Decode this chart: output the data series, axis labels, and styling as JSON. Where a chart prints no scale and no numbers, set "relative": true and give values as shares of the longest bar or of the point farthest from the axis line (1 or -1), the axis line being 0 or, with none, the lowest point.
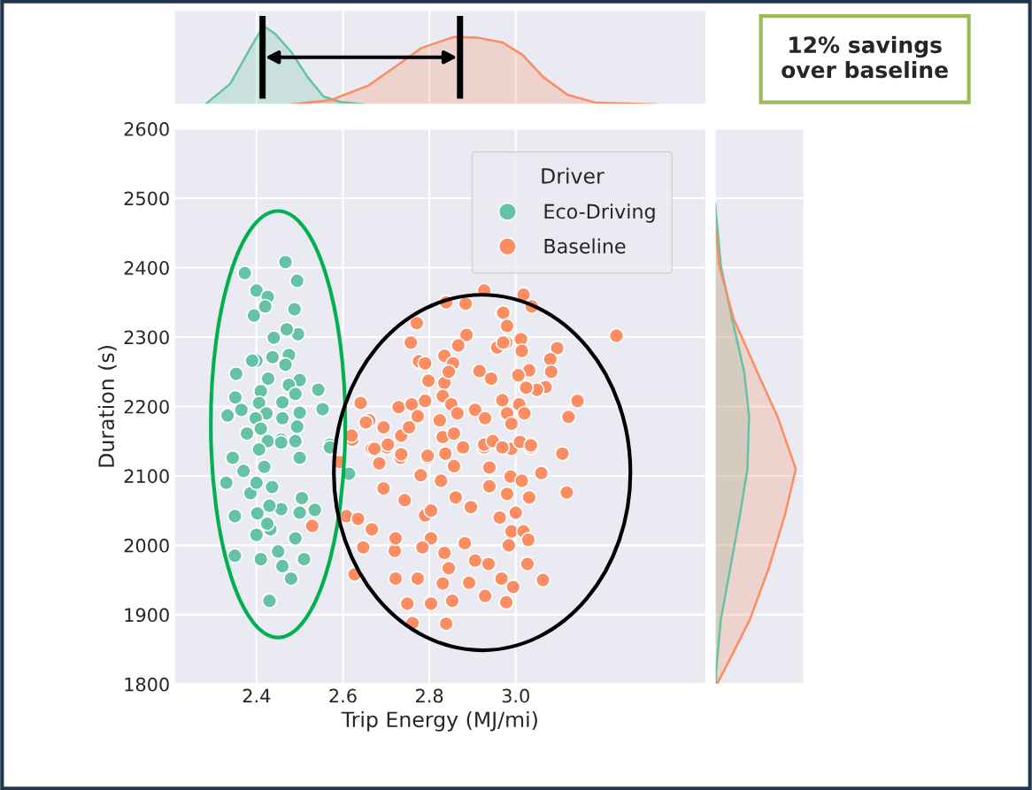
{
  "chart_data": [
    {
      "type": "scatter",
      "xlabel": "Trip Energy (MJ/mi)",
      "ylabel": "Duration (s)",
      "xlim": [
        2.21,
        3.44
      ],
      "xticks": [
        2.4,
        2.6,
        2.8,
        {
          "value": 3.0,
          "label": "3.0"
        }
      ],
      "ylim": [
        1800,
        2600
      ],
      "yticks": [
        1800,
        1900,
        2000,
        2100,
        2200,
        2300,
        2400,
        2500,
        2600
      ],
      "grid": true,
      "legend": "top right",
      "legend_title": "Driver",
      "marker": "circle",
      "series": [
        {
          "name": "Eco-Driving",
          "color": "#66c2a5",
          "x": [
            2.467,
            2.373,
            2.494,
            2.4,
            2.426,
            2.42,
            2.394,
            2.488,
            2.496,
            2.44,
            2.47,
            2.4,
            2.39,
            2.437,
            2.475,
            2.467,
            2.353,
            2.427,
            2.5,
            2.475,
            2.41,
            2.543,
            2.351,
            2.46,
            2.406,
            2.49,
            2.5,
            2.553,
            2.333,
            2.365,
            2.423,
            2.46,
            2.398,
            2.494,
            2.378,
            2.41,
            2.457,
            2.426,
            2.49,
            2.57,
            2.406,
            2.457,
            2.5,
            2.418,
            2.386,
            2.436,
            2.457,
            2.402,
            2.432,
            2.345,
            2.37,
            2.33,
            2.4,
            2.35,
            2.4,
            2.425,
            2.43,
            2.505,
            2.535,
            2.5,
            2.49,
            2.35,
            2.41,
            2.45,
            2.46,
            2.48,
            2.51,
            2.43,
            2.614,
            2.57
          ],
          "values": [
            2408,
            2392,
            2381,
            2367,
            2358,
            2344,
            2331,
            2340,
            2304,
            2299,
            2311,
            2266,
            2266,
            2271,
            2274,
            2260,
            2247,
            2240,
            2238,
            2231,
            2222,
            2224,
            2213,
            2206,
            2205,
            2218,
            2191,
            2196,
            2187,
            2195,
            2190,
            2183,
            2183,
            2171,
            2161,
            2168,
            2152,
            2150,
            2150,
            2145,
            2138,
            2148,
            2126,
            2113,
            2075,
            2084,
            2052,
            2046,
            2023,
            2126,
            2107,
            2090,
            2090,
            2042,
            2015,
            2031,
            2057,
            2068,
            2051,
            2047,
            2010,
            1985,
            1980,
            1991,
            1970,
            1952,
            1980,
            1920,
            2103,
            2141
          ]
        },
        {
          "name": "Baseline",
          "color": "#fc8d62",
          "x": [
            3.108,
            3.059,
            3.118,
            3.031,
            2.684,
            2.733,
            2.796,
            2.837,
            2.702,
            2.667,
            2.857,
            2.78,
            2.827,
            2.939,
            2.927,
            2.99,
            3.035,
            2.988,
            3.014,
            2.939,
            2.694,
            2.743,
            2.79,
            2.861,
            2.896,
            2.963,
            2.98,
            3.0,
            2.804,
            2.608,
            2.635,
            2.667,
            2.647,
            2.72,
            2.722,
            2.804,
            2.784,
            2.882,
            2.99,
            3.018,
            3.029,
            2.984,
            2.835,
            2.845,
            2.906,
            2.937,
            3.027,
            2.627,
            2.722,
            2.773,
            2.831,
            2.892,
            2.967,
            2.994,
            3.063,
            2.749,
            2.804,
            2.853,
            2.929,
            2.978,
            2.761,
            2.839,
            2.839,
            2.884,
            2.927,
            2.969,
            2.771,
            2.757,
            2.886,
            2.867,
            2.978,
            2.957,
            2.835,
            2.855,
            2.776,
            2.79,
            2.916,
            2.943,
            2.798,
            2.835,
            2.845,
            2.831,
            2.969,
            2.641,
            2.729,
            2.759,
            2.773,
            2.79,
            2.851,
            2.865,
            2.906,
            2.929,
            2.978,
            2.661,
            2.694,
            2.824,
            2.735,
            2.753,
            2.704,
            2.831,
            2.857,
            2.927,
            2.947,
            2.969,
            2.878,
            2.673,
            2.796,
            2.735,
            3.018,
            3.037,
            2.971,
            2.98,
            3.233,
            3.012,
            3.096,
            2.971,
            3.014,
            3.08,
            3.082,
            3.031,
            3.006,
            3.069,
            3.049,
            3.024,
            3.143,
            3.122,
            3.008,
            2.98,
            3.02,
            2.99,
            3.01,
            3.035,
            2.529,
            2.592,
            2.622,
            2.653,
            2.62
          ],
          "values": [
            2132,
            2104,
            2076,
            2069,
            2118,
            2126,
            2126,
            2132,
            2141,
            2139,
            2114,
            2101,
            2093,
            2112,
            2141,
            2139,
            2141,
            2099,
            2093,
            2085,
            2082,
            2065,
            2043,
            2069,
            2055,
            2040,
            2074,
            2047,
            2050,
            2042,
            2038,
            2023,
            1997,
            1992,
            2010,
            2010,
            1997,
            2003,
            2020,
            2020,
            2008,
            2000,
            1989,
            1967,
            1978,
            1973,
            1973,
            1958,
            1952,
            1952,
            1945,
            1946,
            1952,
            1940,
            1950,
            1916,
            1916,
            1920,
            1927,
            1918,
            1888,
            1887,
            2350,
            2348,
            2367,
            2335,
            2320,
            2292,
            2303,
            2288,
            2292,
            2285,
            2273,
            2262,
            2265,
            2262,
            2251,
            2240,
            2237,
            2234,
            2250,
            2215,
            2209,
            2205,
            2199,
            2203,
            2186,
            2208,
            2203,
            2190,
            2195,
            2183,
            2190,
            2180,
            2170,
            2180,
            2158,
            2170,
            2145,
            2156,
            2161,
            2145,
            2150,
            2141,
            2141,
            2139,
            2129,
            2131,
            2361,
            2344,
            2335,
            2316,
            2302,
            2297,
            2284,
            2292,
            2280,
            2268,
            2250,
            2252,
            2245,
            2228,
            2224,
            2227,
            2208,
            2185,
            2203,
            2190,
            2190,
            2175,
            2149,
            2144,
            2028,
            2120,
            2152,
            2177,
            2158
          ]
        }
      ]
    },
    {
      "type": "area",
      "relative": true,
      "xlim": [
        2.21,
        3.44
      ],
      "xticks": [
        2.4,
        2.6,
        2.8,
        3.0
      ],
      "tick_labels": false,
      "grid": "x",
      "ref_lines": [
        {
          "axis": "x",
          "value": 2.414,
          "color": "#000000"
        },
        {
          "axis": "x",
          "value": 2.871,
          "color": "#000000"
        }
      ],
      "annotations": [
        "12% savings\nover baseline"
      ],
      "series": [
        {
          "color": "#66c2a5",
          "x": [
            2.282,
            2.339,
            2.386,
            2.416,
            2.443,
            2.48,
            2.518,
            2.555,
            2.594,
            2.649
          ],
          "values": [
            0,
            0.26,
            0.72,
            1.0,
            0.9,
            0.67,
            0.35,
            0.1,
            0.03,
            0
          ]
        },
        {
          "color": "#fc8d62",
          "x": [
            2.48,
            2.573,
            2.659,
            2.724,
            2.782,
            2.857,
            2.912,
            2.969,
            3.016,
            3.063,
            3.12,
            3.186,
            3.327
          ],
          "values": [
            0,
            0.055,
            0.24,
            0.49,
            0.72,
            0.86,
            0.85,
            0.79,
            0.63,
            0.35,
            0.12,
            0.02,
            0
          ]
        }
      ]
    },
    {
      "type": "area",
      "orientation": "horizontal",
      "relative": true,
      "ylim": [
        1800,
        2600
      ],
      "yticks": [
        1800,
        1900,
        2000,
        2100,
        2200,
        2300,
        2400,
        2500,
        2600
      ],
      "tick_labels": false,
      "grid": "y",
      "series": [
        {
          "color": "#66c2a5",
          "x": [
            2492,
            2403,
            2326,
            2250,
            2186,
            2110,
            2046,
            1969,
            1893,
            1817,
            1800
          ],
          "values": [
            0,
            0.07,
            0.21,
            0.36,
            0.42,
            0.4,
            0.31,
            0.19,
            0.07,
            0.01,
            0.01
          ]
        },
        {
          "color": "#fc8d62",
          "x": [
            2466,
            2403,
            2326,
            2250,
            2186,
            2110,
            2046,
            1969,
            1893,
            1842,
            1804,
            1800
          ],
          "values": [
            0,
            0.05,
            0.23,
            0.52,
            0.77,
            1.0,
            0.87,
            0.67,
            0.43,
            0.21,
            0.04,
            0.03
          ]
        }
      ]
    }
  ]
}
